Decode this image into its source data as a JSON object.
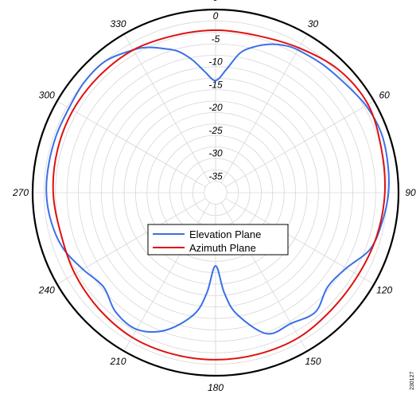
{
  "chart_data": {
    "type": "polar-line",
    "title": "",
    "radial_ticks": [
      "0",
      "-5",
      "-10",
      "-15",
      "-20",
      "-25",
      "-30",
      "-35"
    ],
    "radial_range": [
      -40,
      0
    ],
    "angle_ticks": [
      "0",
      "30",
      "60",
      "90",
      "120",
      "150",
      "180",
      "210",
      "240",
      "270",
      "300",
      "330"
    ],
    "angle_direction": "clockwise",
    "grid": true,
    "legend": {
      "placement": "center",
      "entries": [
        "Elevation Plane",
        "Azimuth Plane"
      ]
    },
    "series": [
      {
        "name": "Elevation Plane",
        "color": "#3a6fe8",
        "angles": [
          0,
          5,
          10,
          15,
          20,
          25,
          30,
          40,
          50,
          60,
          70,
          80,
          90,
          100,
          110,
          120,
          130,
          140,
          150,
          160,
          170,
          175,
          180,
          185,
          190,
          200,
          210,
          220,
          230,
          240,
          250,
          260,
          270,
          280,
          290,
          300,
          310,
          320,
          330,
          335,
          340,
          345,
          350,
          355,
          360
        ],
        "values": [
          -15.5,
          -13,
          -9,
          -7,
          -5.5,
          -4.5,
          -4,
          -3.5,
          -3,
          -2,
          -1.5,
          -1.8,
          -2.2,
          -3,
          -4,
          -7,
          -8,
          -6,
          -7,
          -7.2,
          -13,
          -18,
          -24,
          -18,
          -13,
          -8,
          -5.5,
          -6,
          -8,
          -6.5,
          -4.5,
          -3.5,
          -3,
          -3,
          -3,
          -3,
          -2.5,
          -2.5,
          -4,
          -5,
          -6.5,
          -8,
          -10.5,
          -13.5,
          -15.5
        ]
      },
      {
        "name": "Azimuth Plane",
        "color": "#e01010",
        "angles": [
          0,
          15,
          30,
          45,
          60,
          75,
          90,
          105,
          120,
          135,
          150,
          165,
          180,
          195,
          210,
          225,
          240,
          255,
          270,
          285,
          300,
          315,
          330,
          345,
          360
        ],
        "values": [
          -4.5,
          -4.5,
          -3.5,
          -2,
          -1.5,
          -2.5,
          -3,
          -3.5,
          -4,
          -4,
          -3.5,
          -3.5,
          -3.5,
          -3.5,
          -3.5,
          -4,
          -4.5,
          -5,
          -4.5,
          -4.2,
          -4,
          -4,
          -4,
          -4.5,
          -4.5
        ]
      }
    ]
  },
  "side_code": "230127"
}
